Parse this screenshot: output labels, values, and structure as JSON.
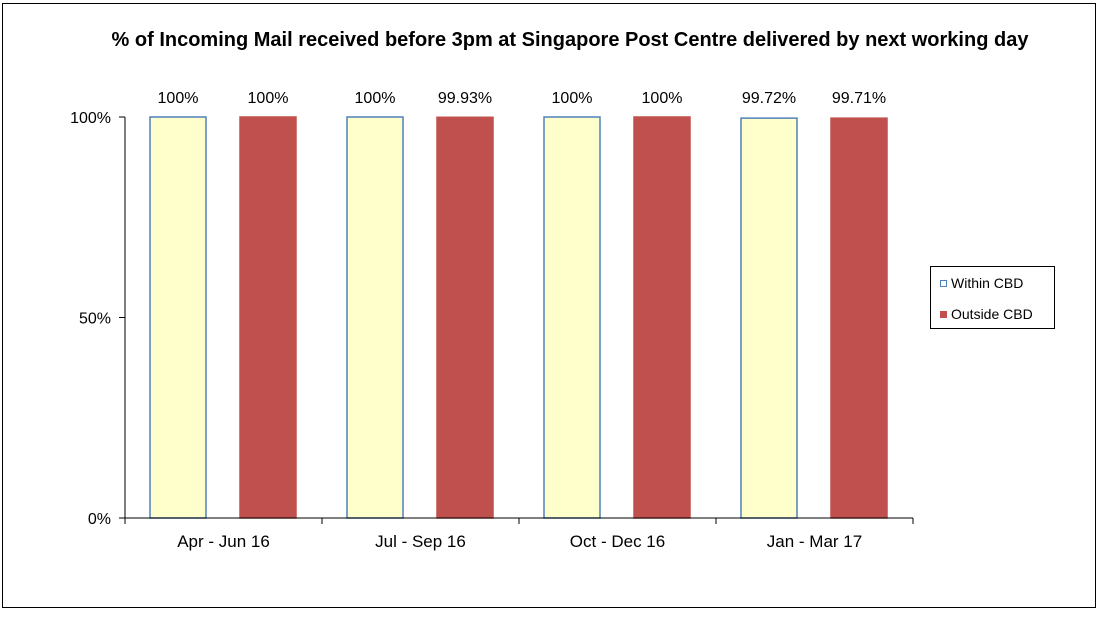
{
  "chart_data": {
    "type": "bar",
    "title": "% of Incoming Mail received before 3pm at Singapore Post Centre delivered by next working day",
    "categories": [
      "Apr - Jun 16",
      "Jul - Sep 16",
      "Oct - Dec 16",
      "Jan - Mar 17"
    ],
    "series": [
      {
        "name": "Within CBD",
        "values": [
          100,
          100,
          100,
          99.72
        ],
        "labels": [
          "100%",
          "100%",
          "100%",
          "99.72%"
        ],
        "fill": "#ffffcc",
        "stroke": "#4f81bd"
      },
      {
        "name": "Outside CBD",
        "values": [
          100,
          99.93,
          100,
          99.71
        ],
        "labels": [
          "100%",
          "99.93%",
          "100%",
          "99.71%"
        ],
        "fill": "#c0504d",
        "stroke": "#c0504d"
      }
    ],
    "ylim": [
      0,
      100
    ],
    "yticks": [
      0,
      50,
      100
    ],
    "ytick_labels": [
      "0%",
      "50%",
      "100%"
    ],
    "xlabel": "",
    "ylabel": "",
    "grid": false,
    "legend": "right"
  }
}
